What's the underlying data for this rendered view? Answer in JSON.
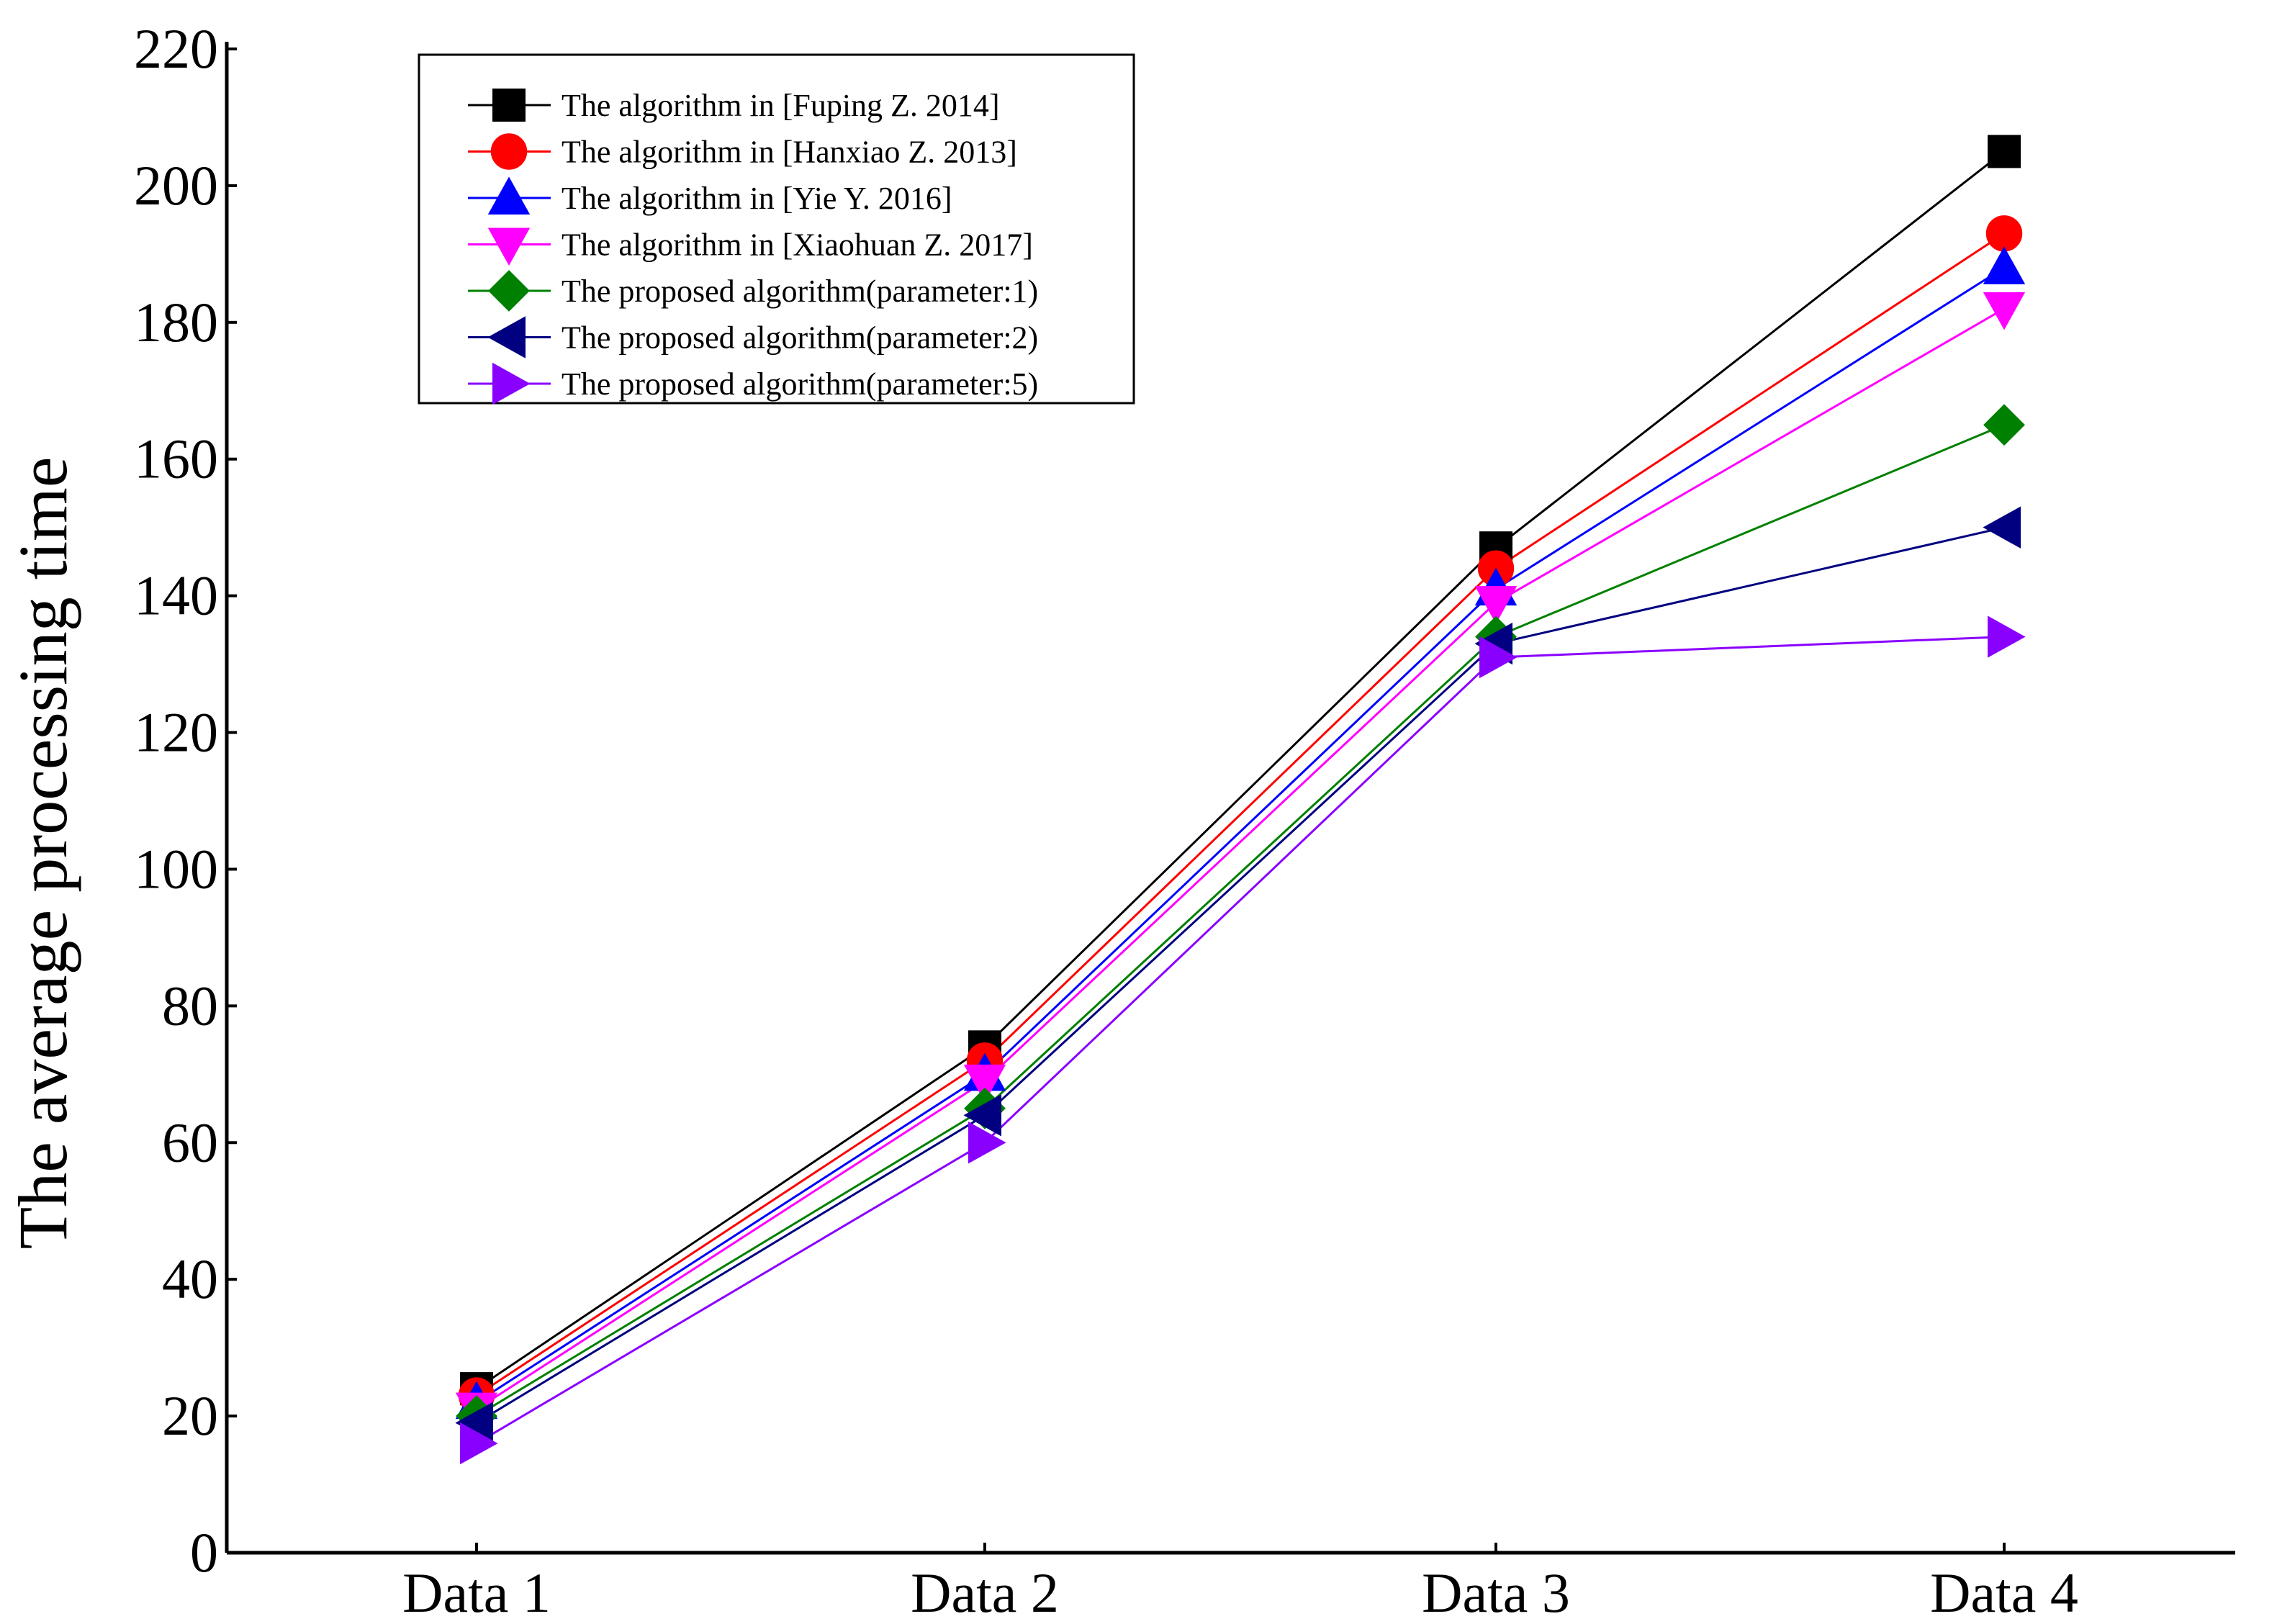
{
  "chart_data": {
    "type": "line",
    "title": "",
    "xlabel": "",
    "ylabel": "The average processing time",
    "categories": [
      "Data 1",
      "Data 2",
      "Data 3",
      "Data 4"
    ],
    "ylim": [
      0,
      220
    ],
    "yticks": [
      0,
      20,
      40,
      60,
      80,
      100,
      120,
      140,
      160,
      180,
      200,
      220
    ],
    "grid": false,
    "legend_position": "top-left",
    "series": [
      {
        "name": "The algorithm in [Fuping Z. 2014]",
        "color": "#000000",
        "marker": "square",
        "values": [
          24,
          74,
          147,
          205
        ]
      },
      {
        "name": "The algorithm in [Hanxiao Z. 2013]",
        "color": "#ff0000",
        "marker": "circle",
        "values": [
          23,
          72,
          144,
          193
        ]
      },
      {
        "name": "The algorithm in [Yie Y. 2016]",
        "color": "#0000ff",
        "marker": "triangle-up",
        "values": [
          22,
          70,
          141,
          188
        ]
      },
      {
        "name": "The algorithm in [Xiaohuan Z. 2017]",
        "color": "#ff00ff",
        "marker": "triangle-down",
        "values": [
          21,
          69,
          139,
          182
        ]
      },
      {
        "name": "The proposed algorithm(parameter:1)",
        "color": "#008000",
        "marker": "diamond",
        "values": [
          20,
          65,
          134,
          165
        ]
      },
      {
        "name": "The proposed algorithm(parameter:2)",
        "color": "#000080",
        "marker": "triangle-left",
        "values": [
          19,
          64,
          133,
          150
        ]
      },
      {
        "name": "The proposed algorithm(parameter:5)",
        "color": "#8a00ff",
        "marker": "triangle-right",
        "values": [
          16,
          60,
          131,
          134
        ]
      }
    ]
  }
}
